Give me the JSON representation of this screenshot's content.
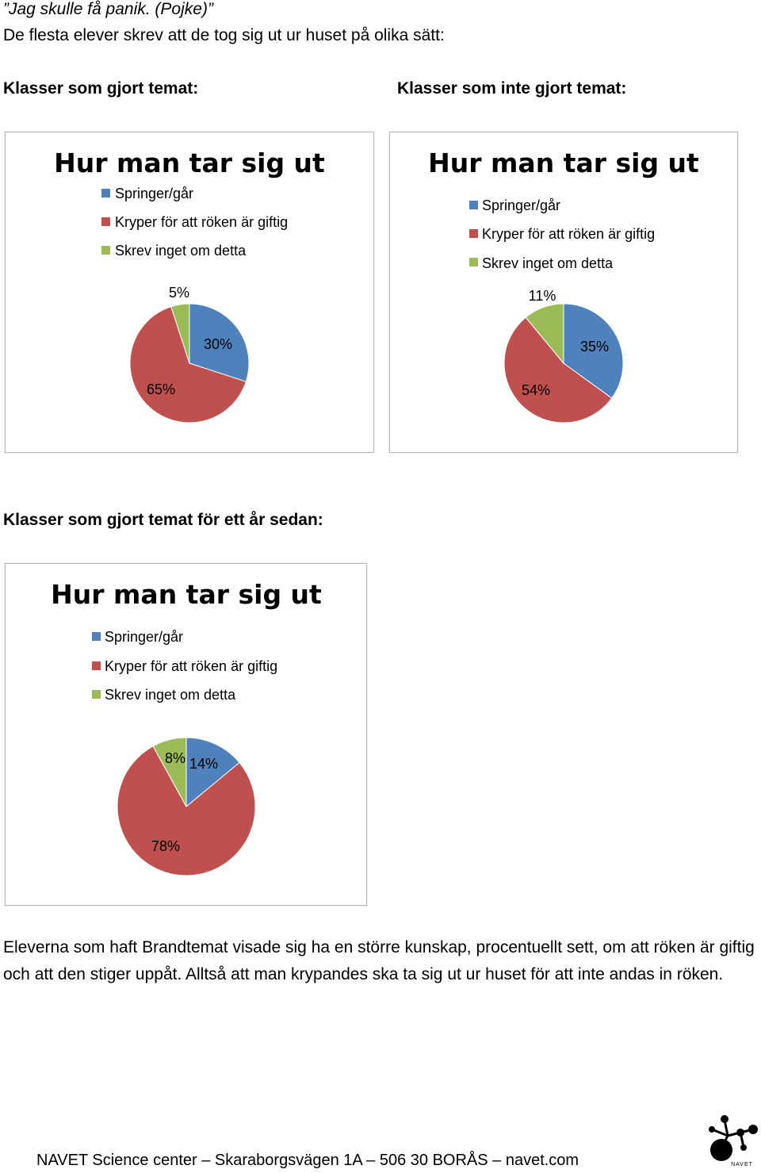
{
  "doc": {
    "quote": "”Jag skulle få panik. (Pojke)”",
    "intro": "De flesta elever skrev att de tog sig ut ur huset på olika sätt:",
    "heading_left": "Klasser som gjort temat:",
    "heading_right": "Klasser som inte gjort temat:",
    "heading_bottom": "Klasser som gjort temat för ett år sedan:",
    "paragraph": "Eleverna som haft Brandtemat visade sig ha en större kunskap, procentuellt sett, om att röken är giftig och att den stiger uppåt. Alltså att man krypandes ska ta sig ut ur huset för att inte andas in röken.",
    "footer": "NAVET Science center – Skaraborgsvägen 1A – 506 30 BORÅS – navet.com",
    "logo_label": "NAVET"
  },
  "colors": {
    "blue": "#4F81BD",
    "red": "#C0504D",
    "green": "#9BBB59"
  },
  "chart_data": [
    {
      "type": "pie",
      "title": "Hur man tar sig ut",
      "legend": "top",
      "categories": [
        "Springer/går",
        "Kryper för att röken är giftig",
        "Skrev inget om detta"
      ],
      "values": [
        30,
        65,
        5
      ],
      "labels": [
        "30%",
        "65%",
        "5%"
      ]
    },
    {
      "type": "pie",
      "title": "Hur man tar sig ut",
      "legend": "top",
      "categories": [
        "Springer/går",
        "Kryper för att röken är giftig",
        "Skrev inget om detta"
      ],
      "values": [
        35,
        54,
        11
      ],
      "labels": [
        "35%",
        "54%",
        "11%"
      ]
    },
    {
      "type": "pie",
      "title": "Hur man tar sig ut",
      "legend": "top",
      "categories": [
        "Springer/går",
        "Kryper för att röken är giftig",
        "Skrev inget om detta"
      ],
      "values": [
        14,
        78,
        8
      ],
      "labels": [
        "14%",
        "78%",
        "8%"
      ]
    }
  ]
}
